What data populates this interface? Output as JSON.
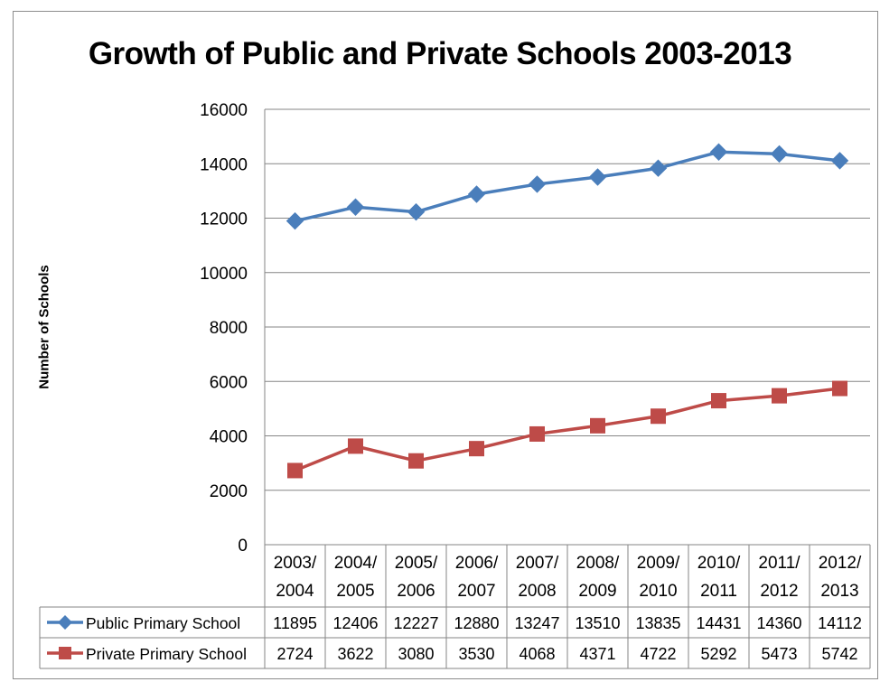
{
  "chart_data": {
    "type": "line",
    "title": "Growth of  Public and Private Schools 2003-2013",
    "ylabel": "Number of Schools",
    "xlabel": "",
    "ylim": [
      0,
      16000
    ],
    "yticks": [
      0,
      2000,
      4000,
      6000,
      8000,
      10000,
      12000,
      14000,
      16000
    ],
    "grid": true,
    "legend": "data-table-left",
    "categories": [
      [
        "2003/",
        "2004"
      ],
      [
        "2004/",
        "2005"
      ],
      [
        "2005/",
        "2006"
      ],
      [
        "2006/",
        "2007"
      ],
      [
        "2007/",
        "2008"
      ],
      [
        "2008/",
        "2009"
      ],
      [
        "2009/",
        "2010"
      ],
      [
        "2010/",
        "2011"
      ],
      [
        "2011/",
        "2012"
      ],
      [
        "2012/",
        "2013"
      ]
    ],
    "series": [
      {
        "name": "Public Primary School",
        "color": "#4a7ebb",
        "marker": "diamond",
        "values": [
          11895,
          12406,
          12227,
          12880,
          13247,
          13510,
          13835,
          14431,
          14360,
          14112
        ]
      },
      {
        "name": "Private Primary School",
        "color": "#be4b48",
        "marker": "square",
        "values": [
          2724,
          3622,
          3080,
          3530,
          4068,
          4371,
          4722,
          5292,
          5473,
          5742
        ]
      }
    ]
  }
}
